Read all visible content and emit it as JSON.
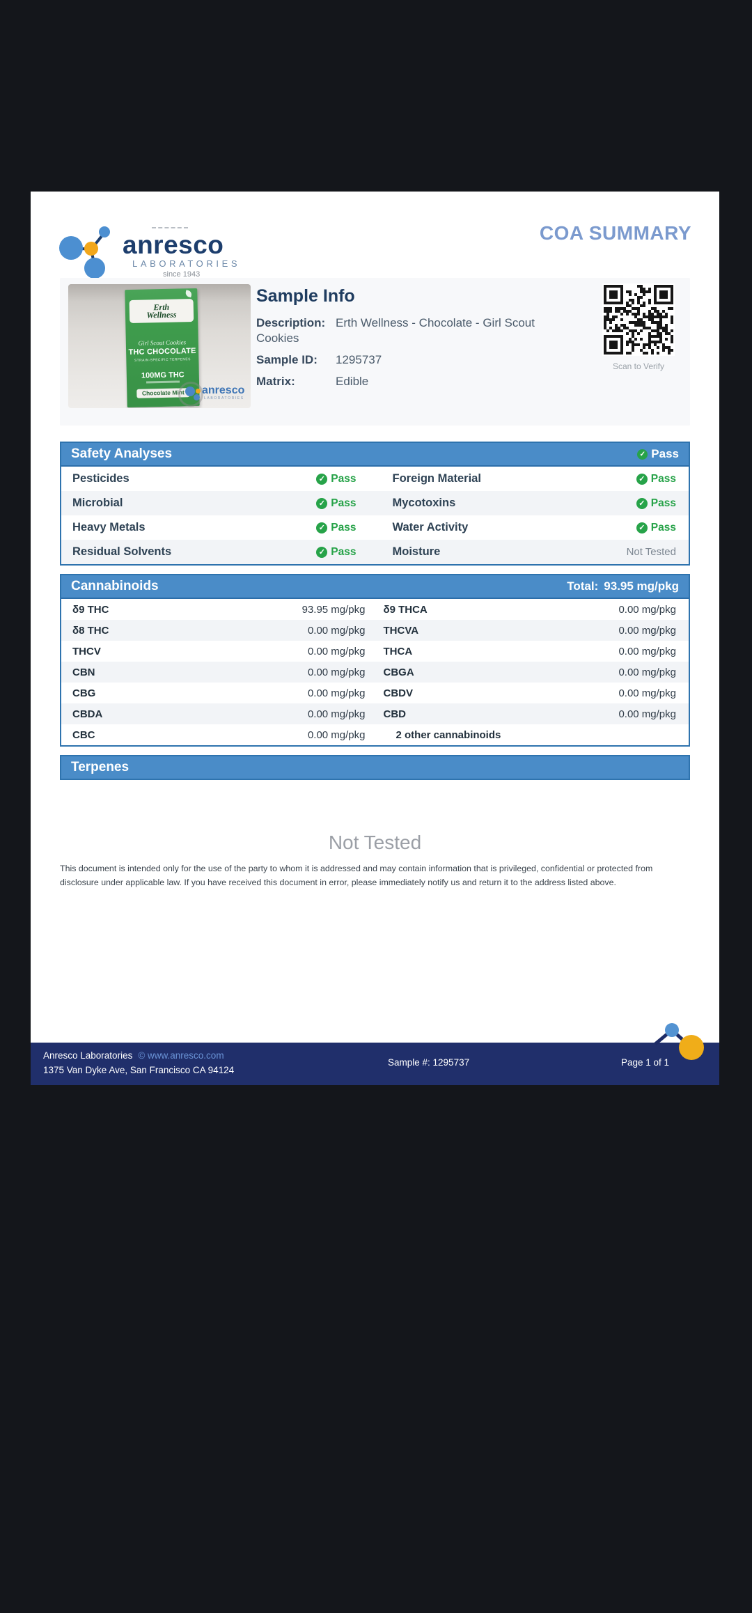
{
  "logo": {
    "brand": "anresco",
    "sub": "LABORATORIES",
    "since": "since 1943"
  },
  "header": {
    "title": "COA SUMMARY"
  },
  "sample_info": {
    "title": "Sample Info",
    "fields": [
      {
        "label": "Description:",
        "value": "Erth Wellness - Chocolate - Girl Scout Cookies"
      },
      {
        "label": "Sample ID:",
        "value": "1295737"
      },
      {
        "label": "Matrix:",
        "value": "Edible"
      }
    ],
    "qr_caption": "Scan to Verify",
    "photo": {
      "brand_line1": "Erth",
      "brand_line2": "Wellness",
      "script": "Girl Scout Cookies",
      "product": "THC CHOCOLATE",
      "product_sub": "STRAIN-SPECIFIC TERPENES",
      "strength": "100MG THC",
      "variant": "Chocolate Mint",
      "watermark": "anresco",
      "watermark_sub": "LABORATORIES"
    }
  },
  "safety": {
    "title": "Safety Analyses",
    "overall_status": "Pass",
    "rows": [
      [
        {
          "label": "Pesticides",
          "status": "Pass"
        },
        {
          "label": "Foreign Material",
          "status": "Pass"
        }
      ],
      [
        {
          "label": "Microbial",
          "status": "Pass"
        },
        {
          "label": "Mycotoxins",
          "status": "Pass"
        }
      ],
      [
        {
          "label": "Heavy Metals",
          "status": "Pass"
        },
        {
          "label": "Water Activity",
          "status": "Pass"
        }
      ],
      [
        {
          "label": "Residual Solvents",
          "status": "Pass"
        },
        {
          "label": "Moisture",
          "status": "Not Tested"
        }
      ]
    ]
  },
  "cannabinoids": {
    "title": "Cannabinoids",
    "total_label": "Total:",
    "total_value": "93.95 mg/pkg",
    "rows": [
      [
        {
          "name": "δ9 THC",
          "value": "93.95 mg/pkg"
        },
        {
          "name": "δ9 THCA",
          "value": "0.00 mg/pkg"
        }
      ],
      [
        {
          "name": "δ8 THC",
          "value": "0.00 mg/pkg"
        },
        {
          "name": "THCVA",
          "value": "0.00 mg/pkg"
        }
      ],
      [
        {
          "name": "THCV",
          "value": "0.00 mg/pkg"
        },
        {
          "name": "THCA",
          "value": "0.00 mg/pkg"
        }
      ],
      [
        {
          "name": "CBN",
          "value": "0.00 mg/pkg"
        },
        {
          "name": "CBGA",
          "value": "0.00 mg/pkg"
        }
      ],
      [
        {
          "name": "CBG",
          "value": "0.00 mg/pkg"
        },
        {
          "name": "CBDV",
          "value": "0.00 mg/pkg"
        }
      ],
      [
        {
          "name": "CBDA",
          "value": "0.00 mg/pkg"
        },
        {
          "name": "CBD",
          "value": "0.00 mg/pkg"
        }
      ],
      [
        {
          "name": "CBC",
          "value": "0.00 mg/pkg"
        },
        {
          "note": "2 other cannabinoids"
        }
      ]
    ]
  },
  "terpenes": {
    "title": "Terpenes",
    "status": "Not Tested"
  },
  "disclaimer": "This document is intended only for the use of the party to whom it is addressed and may contain information that is privileged, confidential or protected from disclosure under applicable law. If you have received this document in error, please immediately notify us and return it to the address listed above.",
  "footer": {
    "company": "Anresco Laboratories",
    "link": "© www.anresco.com",
    "address": "1375 Van Dyke Ave, San Francisco CA 94124",
    "sample": "Sample #: 1295737",
    "page": "Page 1 of 1"
  },
  "icons": {
    "check": "✓"
  },
  "colors": {
    "accent_blue": "#4a8cc8",
    "pass_green": "#27a349",
    "footer_navy": "#202f6b",
    "title_blue": "#7b9ace"
  }
}
